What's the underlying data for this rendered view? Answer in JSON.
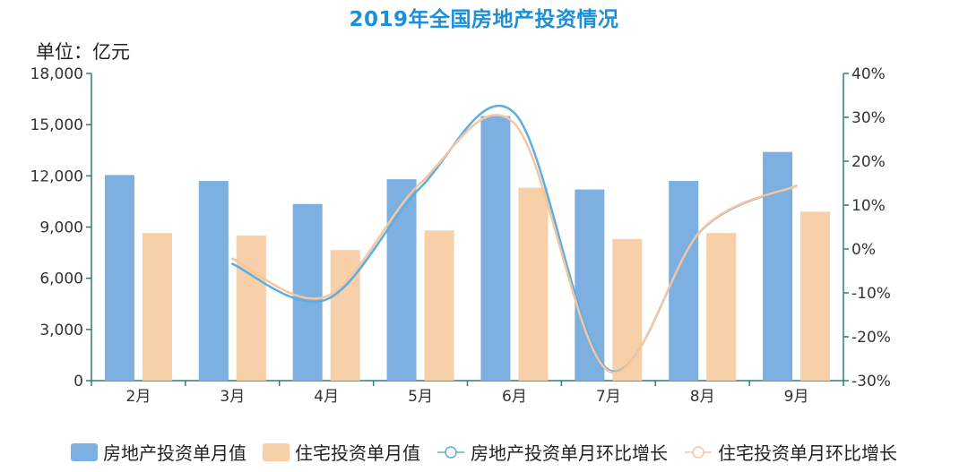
{
  "chart_data": {
    "type": "bar",
    "title": "2019年全国房地产投资情况",
    "unit_label": "单位：亿元",
    "categories": [
      "2月",
      "3月",
      "4月",
      "5月",
      "6月",
      "7月",
      "8月",
      "9月"
    ],
    "series": [
      {
        "name": "房地产投资单月值",
        "kind": "bar",
        "axis": "left",
        "color": "#7db0e0",
        "values": [
          12050,
          11700,
          10350,
          11800,
          15500,
          11200,
          11700,
          13400
        ]
      },
      {
        "name": "住宅投资单月值",
        "kind": "bar",
        "axis": "left",
        "color": "#f7cfa8",
        "values": [
          8650,
          8500,
          7650,
          8800,
          11300,
          8300,
          8650,
          9900
        ]
      },
      {
        "name": "房地产投资单月环比增长",
        "kind": "line",
        "axis": "right",
        "color": "#5aaee3",
        "values": [
          null,
          -3.4,
          -11.5,
          14.0,
          31.0,
          -27.5,
          4.5,
          14.4
        ]
      },
      {
        "name": "住宅投资单月环比增长",
        "kind": "line",
        "axis": "right",
        "color": "#f7c6a0",
        "values": [
          null,
          -2.2,
          -10.8,
          15.0,
          28.6,
          -27.8,
          4.6,
          14.4
        ]
      }
    ],
    "y_left": {
      "min": 0,
      "max": 18000,
      "ticks": [
        0,
        3000,
        6000,
        9000,
        12000,
        15000,
        18000
      ],
      "tick_labels": [
        "0",
        "3,000",
        "6,000",
        "9,000",
        "12,000",
        "15,000",
        "18,000"
      ]
    },
    "y_right": {
      "min": -30,
      "max": 40,
      "ticks": [
        -30,
        -20,
        -10,
        0,
        10,
        20,
        30,
        40
      ],
      "tick_labels": [
        "-30%",
        "-20%",
        "-10%",
        "0%",
        "10%",
        "20%",
        "30%",
        "40%"
      ]
    },
    "grid": false,
    "legend_position": "bottom",
    "axis_color": "#2e7d7a"
  }
}
